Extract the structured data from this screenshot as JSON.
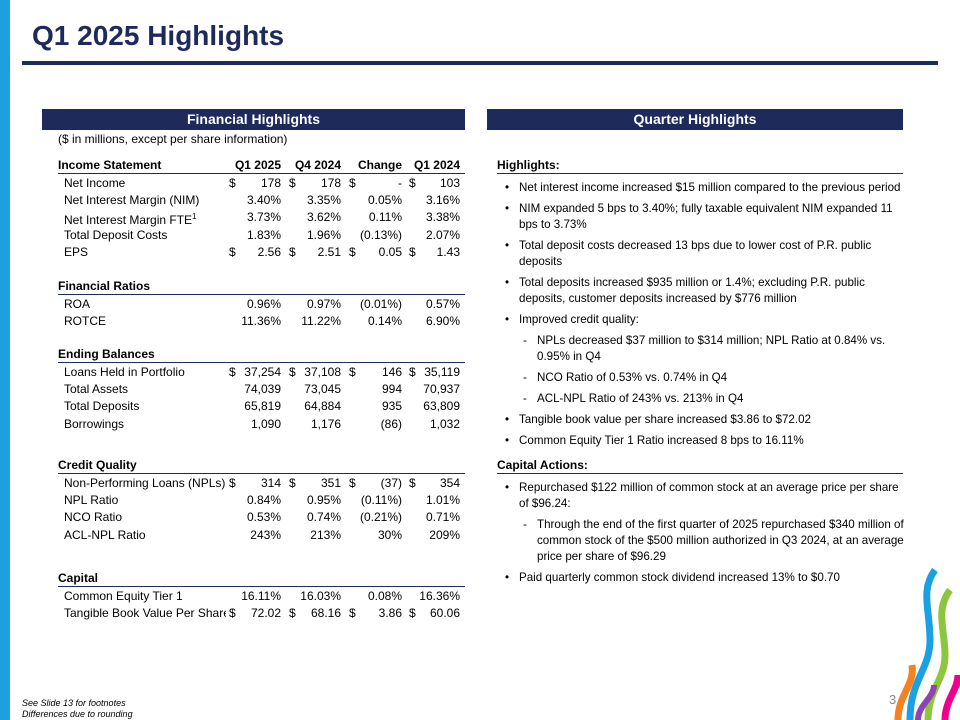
{
  "title": "Q1 2025 Highlights",
  "financial": {
    "header": "Financial Highlights",
    "note": "($ in millions, except per share information)",
    "currency": "$",
    "columns": [
      "Q1 2025",
      "Q4 2024",
      "Change",
      "Q1 2024"
    ],
    "sections": [
      {
        "title": "Income Statement",
        "rows": [
          {
            "label": "Net Income",
            "currency": true,
            "values": [
              "178",
              "178",
              "-",
              "103"
            ]
          },
          {
            "label": "Net Interest Margin (NIM)",
            "values": [
              "3.40%",
              "3.35%",
              "0.05%",
              "3.16%"
            ]
          },
          {
            "label": "Net Interest Margin FTE",
            "footnote": "1",
            "values": [
              "3.73%",
              "3.62%",
              "0.11%",
              "3.38%"
            ]
          },
          {
            "label": "Total Deposit Costs",
            "values": [
              "1.83%",
              "1.96%",
              "(0.13%)",
              "2.07%"
            ]
          },
          {
            "label": "EPS",
            "currency": true,
            "values": [
              "2.56",
              "2.51",
              "0.05",
              "1.43"
            ]
          }
        ]
      },
      {
        "title": "Financial Ratios",
        "rows": [
          {
            "label": "ROA",
            "values": [
              "0.96%",
              "0.97%",
              "(0.01%)",
              "0.57%"
            ]
          },
          {
            "label": "ROTCE",
            "values": [
              "11.36%",
              "11.22%",
              "0.14%",
              "6.90%"
            ]
          }
        ]
      },
      {
        "title": "Ending Balances",
        "rows": [
          {
            "label": "Loans Held in Portfolio",
            "currency": true,
            "values": [
              "37,254",
              "37,108",
              "146",
              "35,119"
            ]
          },
          {
            "label": "Total Assets",
            "values": [
              "74,039",
              "73,045",
              "994",
              "70,937"
            ]
          },
          {
            "label": "Total Deposits",
            "values": [
              "65,819",
              "64,884",
              "935",
              "63,809"
            ]
          },
          {
            "label": "Borrowings",
            "values": [
              "1,090",
              "1,176",
              "(86)",
              "1,032"
            ]
          }
        ]
      },
      {
        "title": "Credit Quality",
        "rows": [
          {
            "label": "Non-Performing Loans (NPLs)",
            "currency": true,
            "values": [
              "314",
              "351",
              "(37)",
              "354"
            ]
          },
          {
            "label": "NPL Ratio",
            "values": [
              "0.84%",
              "0.95%",
              "(0.11%)",
              "1.01%"
            ]
          },
          {
            "label": "NCO Ratio",
            "values": [
              "0.53%",
              "0.74%",
              "(0.21%)",
              "0.71%"
            ]
          },
          {
            "label": "ACL-NPL Ratio",
            "values": [
              "243%",
              "213%",
              "30%",
              "209%"
            ]
          }
        ]
      },
      {
        "title": "Capital",
        "rows": [
          {
            "label": "Common Equity Tier 1",
            "values": [
              "16.11%",
              "16.03%",
              "0.08%",
              "16.36%"
            ]
          },
          {
            "label": "Tangible Book Value Per Share",
            "currency": true,
            "values": [
              "72.02",
              "68.16",
              "3.86",
              "60.06"
            ]
          }
        ]
      }
    ]
  },
  "quarter": {
    "header": "Quarter Highlights",
    "bullet": "•",
    "dash": "-",
    "groups": [
      {
        "title": "Highlights:",
        "items": [
          {
            "text": "Net interest income increased $15 million compared to the previous period"
          },
          {
            "text": "NIM expanded 5 bps to 3.40%; fully taxable equivalent NIM expanded 11 bps to 3.73%"
          },
          {
            "text": "Total deposit costs decreased 13 bps due to lower cost of P.R. public deposits"
          },
          {
            "text": "Total deposits increased $935 million or 1.4%; excluding P.R. public deposits, customer deposits increased by $776 million"
          },
          {
            "text": "Improved credit quality:",
            "subs": [
              "NPLs decreased $37 million to $314 million; NPL Ratio at 0.84% vs. 0.95% in Q4",
              "NCO Ratio of 0.53% vs. 0.74% in Q4",
              "ACL-NPL Ratio of 243% vs. 213% in Q4"
            ]
          },
          {
            "text": "Tangible book value per share increased $3.86 to $72.02"
          },
          {
            "text": "Common Equity Tier 1 Ratio increased 8 bps to 16.11%"
          }
        ]
      },
      {
        "title": "Capital Actions:",
        "items": [
          {
            "text": "Repurchased $122 million of common stock at an average price per share of $96.24:",
            "subs": [
              "Through the end of the first quarter of 2025 repurchased $340 million of common stock of the $500 million authorized in Q3 2024, at an average price per share of $96.29"
            ]
          },
          {
            "text": "Paid quarterly common stock dividend increased 13% to $0.70"
          }
        ]
      }
    ]
  },
  "footer": {
    "page": "3",
    "notes": [
      "See Slide 13 for footnotes",
      "Differences due to rounding"
    ]
  }
}
